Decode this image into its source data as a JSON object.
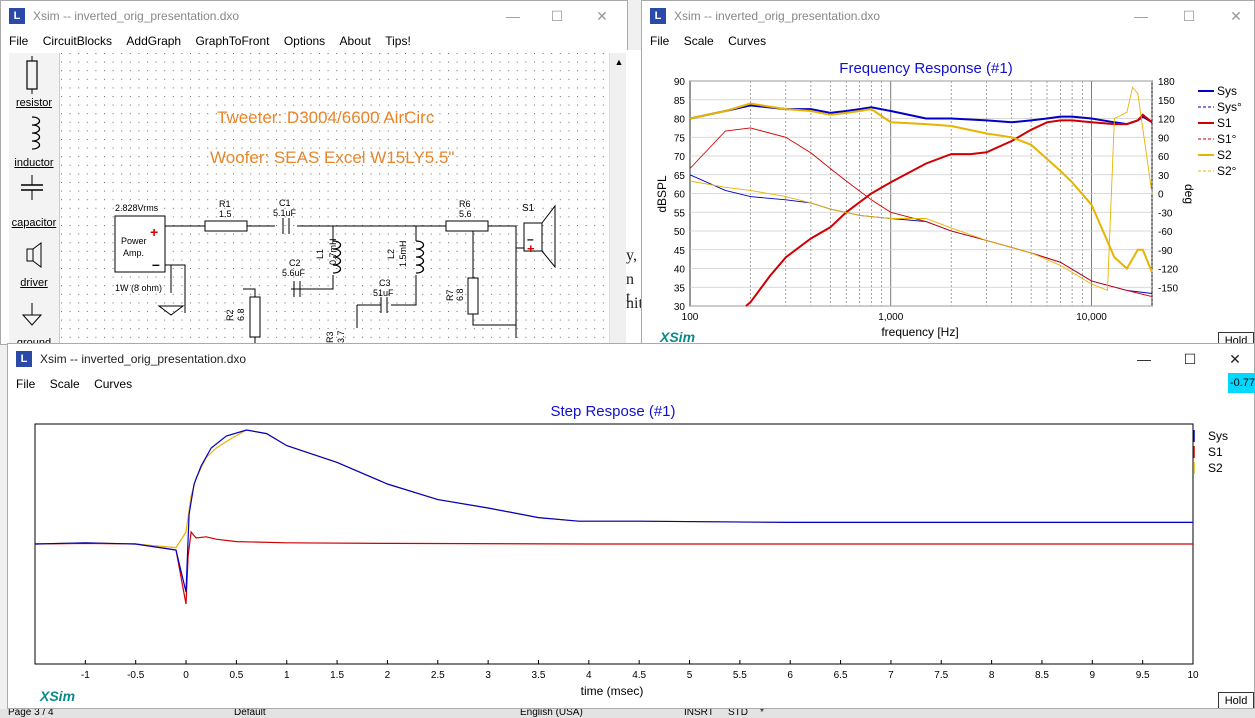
{
  "circuit_window": {
    "title": "Xsim -- inverted_orig_presentation.dxo",
    "menu": [
      "File",
      "CircuitBlocks",
      "AddGraph",
      "GraphToFront",
      "Options",
      "About",
      "Tips!"
    ],
    "palette": [
      {
        "label": "resistor",
        "icon": "resistor-icon"
      },
      {
        "label": "inductor",
        "icon": "inductor-icon"
      },
      {
        "label": "capacitor",
        "icon": "capacitor-icon"
      },
      {
        "label": "driver",
        "icon": "speaker-icon"
      },
      {
        "label": "ground",
        "icon": "ground-icon"
      }
    ],
    "notes": [
      "Tweeter: D3004/6600 AirCirc",
      "Woofer: SEAS Excel W15LY5.5\""
    ],
    "note_color": "#e8862a",
    "amp": {
      "voltage": "2.828Vrms",
      "name_line1": "Power",
      "name_line2": "Amp.",
      "rating": "1W (8 ohm)"
    },
    "components": {
      "R1": {
        "name": "R1",
        "value": "1.5"
      },
      "C1": {
        "name": "C1",
        "value": "5.1uF"
      },
      "L1": {
        "name": "L1",
        "value": "0.7mH"
      },
      "C2": {
        "name": "C2",
        "value": "5.6uF"
      },
      "L2": {
        "name": "L2",
        "value": "1.5mH"
      },
      "C3": {
        "name": "C3",
        "value": "51uF"
      },
      "R6": {
        "name": "R6",
        "value": "5.6"
      },
      "R7": {
        "name": "R7",
        "value": "6.8"
      },
      "R2": {
        "name": "R2",
        "value": "6.8"
      },
      "R3": {
        "name": "R3",
        "value": "3.7"
      },
      "S1": {
        "name": "S1"
      }
    }
  },
  "background_document": {
    "fragments": [
      "y,",
      "n t",
      "nit"
    ]
  },
  "freq_window": {
    "title": "Xsim -- inverted_orig_presentation.dxo",
    "menu": [
      "File",
      "Scale",
      "Curves"
    ],
    "hold_label": "Hold",
    "chart_data": {
      "type": "line",
      "title": "Frequency Response (#1)",
      "xlabel": "frequency [Hz]",
      "ylabel": "dBSPL",
      "y2label": "deg",
      "x_scale": "log",
      "xlim": [
        100,
        20000
      ],
      "ylim": [
        30,
        90
      ],
      "y2lim": [
        -180,
        180
      ],
      "x_tick_labels": [
        "100",
        "1,000",
        "10,000"
      ],
      "y_tick_labels": [
        "90",
        "85",
        "80",
        "75",
        "70",
        "65",
        "60",
        "55",
        "50",
        "45",
        "40",
        "35",
        "30"
      ],
      "y2_tick_labels": [
        "180",
        "150",
        "120",
        "90",
        "60",
        "30",
        "0",
        "-30",
        "-60",
        "-90",
        "-120",
        "-150"
      ],
      "grid": true,
      "legend_position": "right",
      "watermark": "XSim",
      "series": [
        {
          "name": "Sys",
          "color": "#0000c8",
          "style": "solid",
          "axis": "y",
          "x": [
            100,
            150,
            200,
            300,
            400,
            500,
            600,
            700,
            800,
            1000,
            1500,
            2000,
            3000,
            4000,
            5000,
            6000,
            7000,
            8000,
            10000,
            13000,
            15000,
            17000,
            18000,
            20000
          ],
          "y": [
            80,
            82,
            83.5,
            82.5,
            82.5,
            81.5,
            82,
            82.5,
            83,
            82,
            80,
            80,
            79.5,
            79,
            79.5,
            80,
            80.5,
            80.5,
            80,
            79,
            78.5,
            79.5,
            80.5,
            79
          ]
        },
        {
          "name": "Sys°",
          "color": "#0000c8",
          "style": "dashed",
          "axis": "y2",
          "x": [
            100,
            150,
            200,
            300,
            400,
            500,
            700,
            1000,
            1500,
            2000,
            3000,
            5000,
            7000,
            10000,
            15000,
            20000
          ],
          "y": [
            30,
            5,
            -5,
            -10,
            -15,
            -25,
            -35,
            -40,
            -45,
            -60,
            -75,
            -95,
            -110,
            -140,
            -155,
            -160
          ]
        },
        {
          "name": "S1",
          "color": "#d00000",
          "style": "solid",
          "axis": "y",
          "x": [
            190,
            200,
            250,
            300,
            400,
            500,
            600,
            800,
            1000,
            1500,
            2000,
            2500,
            3000,
            4000,
            5000,
            6000,
            7000,
            8000,
            10000,
            13000,
            15000,
            17000,
            18000,
            20000
          ],
          "y": [
            30,
            31,
            38,
            43,
            48,
            51,
            55,
            60,
            63,
            68,
            70.5,
            70.5,
            71,
            74,
            77,
            79,
            79.5,
            79.5,
            79,
            78.5,
            78.5,
            79.5,
            81,
            79
          ]
        },
        {
          "name": "S1°",
          "color": "#d00000",
          "style": "dashed",
          "axis": "y2",
          "x": [
            100,
            150,
            200,
            300,
            400,
            500,
            600,
            800,
            1000,
            1500,
            2000,
            3000,
            5000,
            7000,
            10000,
            15000,
            20000
          ],
          "y": [
            40,
            100,
            105,
            90,
            65,
            40,
            20,
            -10,
            -30,
            -45,
            -60,
            -75,
            -95,
            -110,
            -140,
            -155,
            -165
          ]
        },
        {
          "name": "S2",
          "color": "#e8b400",
          "style": "solid",
          "axis": "y",
          "x": [
            100,
            150,
            200,
            300,
            400,
            500,
            600,
            700,
            800,
            1000,
            1500,
            2000,
            3000,
            4000,
            5000,
            7000,
            8000,
            10000,
            13000,
            15000,
            17000,
            18000,
            20000
          ],
          "y": [
            80,
            82,
            84,
            82.5,
            82,
            81,
            81.5,
            82,
            82.5,
            79,
            78.5,
            78,
            76,
            75,
            73,
            66,
            63,
            57,
            43,
            40,
            45,
            45,
            39
          ]
        },
        {
          "name": "S2°",
          "color": "#e8b400",
          "style": "dashed",
          "axis": "y2",
          "x": [
            100,
            150,
            200,
            300,
            400,
            500,
            700,
            1000,
            1500,
            2000,
            3000,
            5000,
            7000,
            10000,
            12000,
            13000,
            15000,
            16000,
            17000,
            20000
          ],
          "y": [
            20,
            10,
            5,
            -5,
            -15,
            -25,
            -35,
            -40,
            -40,
            -55,
            -75,
            -95,
            -115,
            -145,
            -155,
            120,
            130,
            170,
            160,
            0
          ]
        }
      ]
    }
  },
  "step_window": {
    "title": "Xsim -- inverted_orig_presentation.dxo",
    "menu": [
      "File",
      "Scale",
      "Curves"
    ],
    "hold_label": "Hold",
    "readout": "-0.77",
    "chart_data": {
      "type": "line",
      "title": "Step Respose (#1)",
      "xlabel": "time (msec)",
      "xlim": [
        -1.5,
        10
      ],
      "ylim": [
        -1,
        1
      ],
      "x_tick_labels": [
        "-1",
        "-0.5",
        "0",
        "0.5",
        "1",
        "1.5",
        "2",
        "2.5",
        "3",
        "3.5",
        "4",
        "4.5",
        "5",
        "5.5",
        "6",
        "6.5",
        "7",
        "7.5",
        "8",
        "8.5",
        "9",
        "9.5",
        "10"
      ],
      "legend_position": "right",
      "watermark": "XSim",
      "series": [
        {
          "name": "Sys",
          "color": "#0000c8",
          "x": [
            -1.5,
            -1,
            -0.5,
            -0.1,
            0,
            0.03,
            0.08,
            0.15,
            0.25,
            0.4,
            0.6,
            0.8,
            1,
            1.5,
            2,
            2.5,
            3,
            3.5,
            3.9,
            4.5,
            6,
            8,
            10
          ],
          "y": [
            0,
            0.01,
            0,
            -0.05,
            -0.4,
            0.25,
            0.5,
            0.65,
            0.8,
            0.9,
            0.95,
            0.92,
            0.82,
            0.68,
            0.5,
            0.37,
            0.3,
            0.22,
            0.19,
            0.19,
            0.18,
            0.18,
            0.18
          ]
        },
        {
          "name": "S1",
          "color": "#d00000",
          "x": [
            -1.5,
            -1,
            -0.5,
            -0.1,
            0,
            0.02,
            0.05,
            0.1,
            0.2,
            0.3,
            0.5,
            1,
            2,
            4,
            10
          ],
          "y": [
            0,
            0.005,
            0,
            -0.05,
            -0.5,
            -0.1,
            0.1,
            0.05,
            0.06,
            0.04,
            0.02,
            0.01,
            0.005,
            0,
            0
          ]
        },
        {
          "name": "S2",
          "color": "#e8b400",
          "x": [
            -1.5,
            -1,
            -0.5,
            -0.1,
            0,
            0.05,
            0.1,
            0.2,
            0.3,
            0.45,
            0.6,
            0.8,
            1,
            1.5,
            2,
            2.5,
            3,
            3.5,
            3.9,
            4.5,
            6,
            8,
            10
          ],
          "y": [
            0,
            0.01,
            0,
            -0.03,
            0.1,
            0.4,
            0.55,
            0.72,
            0.8,
            0.88,
            0.95,
            0.92,
            0.82,
            0.68,
            0.5,
            0.37,
            0.3,
            0.22,
            0.19,
            0.19,
            0.18,
            0.18,
            0.18
          ]
        }
      ]
    }
  },
  "statusbar": {
    "items": [
      "Page 3 / 4",
      "Default",
      "English (USA)",
      "INSRT",
      "STD",
      "*"
    ]
  }
}
